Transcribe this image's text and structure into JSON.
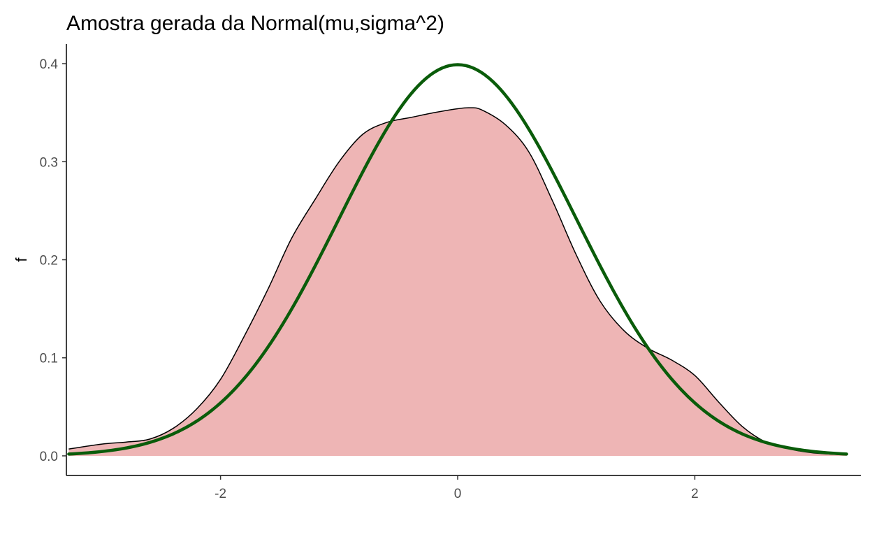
{
  "chart_data": {
    "type": "area",
    "title": "Amostra gerada da Normal(mu,sigma^2)",
    "xlabel": "",
    "ylabel": "f",
    "xlim": [
      -3.3,
      3.4
    ],
    "ylim": [
      -0.02,
      0.42
    ],
    "x_ticks": [
      -2,
      0,
      2
    ],
    "x_tick_labels": [
      "-2",
      "0",
      "2"
    ],
    "y_ticks": [
      0.0,
      0.1,
      0.2,
      0.3,
      0.4
    ],
    "y_tick_labels": [
      "0.0",
      "0.1",
      "0.2",
      "0.3",
      "0.4"
    ],
    "grid": false,
    "legend": "none",
    "series": [
      {
        "kind": "density-area",
        "fill": "#eeb5b5",
        "stroke": "#000000",
        "x": [
          -3.28,
          -3.0,
          -2.8,
          -2.6,
          -2.4,
          -2.2,
          -2.0,
          -1.8,
          -1.6,
          -1.4,
          -1.2,
          -1.0,
          -0.8,
          -0.6,
          -0.4,
          -0.2,
          0.0,
          0.1,
          0.2,
          0.4,
          0.6,
          0.8,
          1.0,
          1.2,
          1.4,
          1.6,
          1.8,
          2.0,
          2.2,
          2.4,
          2.6,
          2.8,
          3.0,
          3.28
        ],
        "y": [
          0.007,
          0.012,
          0.014,
          0.017,
          0.028,
          0.048,
          0.078,
          0.122,
          0.17,
          0.222,
          0.262,
          0.3,
          0.328,
          0.34,
          0.345,
          0.35,
          0.354,
          0.355,
          0.353,
          0.338,
          0.31,
          0.26,
          0.205,
          0.158,
          0.128,
          0.11,
          0.098,
          0.082,
          0.055,
          0.03,
          0.014,
          0.007,
          0.003,
          0.001
        ]
      },
      {
        "kind": "normal-curve",
        "stroke": "#0a5c0a",
        "mean": 0,
        "sd": 1,
        "x_range": [
          -3.28,
          3.28
        ]
      }
    ]
  }
}
